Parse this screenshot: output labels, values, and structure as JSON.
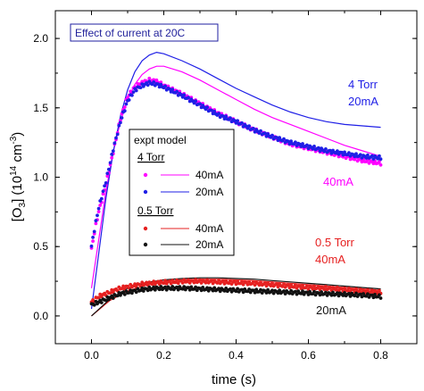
{
  "chart_data": {
    "type": "line",
    "title": "Effect of current at 20C",
    "xlabel": "time (s)",
    "ylabel": {
      "prefix": "[O",
      "sub": "3",
      "mid": "] (10",
      "sup": "14",
      "tail": " cm",
      "sup2": "-3",
      "close": ")"
    },
    "xlim": [
      -0.1,
      0.9
    ],
    "ylim": [
      -0.2,
      2.2
    ],
    "xticks": [
      "0.0",
      "0.2",
      "0.4",
      "0.6",
      "0.8"
    ],
    "yticks": [
      "0.0",
      "0.5",
      "1.0",
      "1.5",
      "2.0"
    ],
    "xtick_values": [
      0.0,
      0.2,
      0.4,
      0.6,
      0.8
    ],
    "ytick_values": [
      0.0,
      0.5,
      1.0,
      1.5,
      2.0
    ],
    "grid": false,
    "legend": {
      "position": "left-middle",
      "header": "expt model",
      "groups": [
        {
          "label": "4 Torr",
          "entries": [
            {
              "label": "40mA",
              "color": "#ff00ff"
            },
            {
              "label": "20mA",
              "color": "#1f1fe6"
            }
          ]
        },
        {
          "label": "0.5 Torr",
          "entries": [
            {
              "label": "40mA",
              "color": "#e62020"
            },
            {
              "label": "20mA",
              "color": "#111111"
            }
          ]
        }
      ]
    },
    "annotations": {
      "four_torr": "4 Torr",
      "four_20": "20mA",
      "four_40": "40mA",
      "half_torr": "0.5 Torr",
      "half_40": "40mA",
      "half_20": "20mA"
    },
    "series": [
      {
        "name": "4 Torr 40mA expt",
        "kind": "expt",
        "color": "#ff00ff",
        "x": [
          0.0,
          0.01,
          0.02,
          0.04,
          0.06,
          0.08,
          0.1,
          0.12,
          0.14,
          0.16,
          0.18,
          0.2,
          0.25,
          0.3,
          0.35,
          0.4,
          0.45,
          0.5,
          0.55,
          0.6,
          0.65,
          0.7,
          0.75,
          0.8
        ],
        "y": [
          0.48,
          0.63,
          0.75,
          0.95,
          1.18,
          1.42,
          1.58,
          1.65,
          1.68,
          1.7,
          1.69,
          1.66,
          1.6,
          1.53,
          1.46,
          1.4,
          1.34,
          1.29,
          1.24,
          1.21,
          1.18,
          1.15,
          1.12,
          1.1
        ]
      },
      {
        "name": "4 Torr 20mA expt",
        "kind": "expt",
        "color": "#1f1fe6",
        "x": [
          0.0,
          0.01,
          0.02,
          0.04,
          0.06,
          0.08,
          0.1,
          0.12,
          0.14,
          0.16,
          0.18,
          0.2,
          0.25,
          0.3,
          0.35,
          0.4,
          0.45,
          0.5,
          0.55,
          0.6,
          0.65,
          0.7,
          0.75,
          0.8
        ],
        "y": [
          0.5,
          0.65,
          0.78,
          0.97,
          1.2,
          1.4,
          1.55,
          1.63,
          1.66,
          1.68,
          1.67,
          1.65,
          1.59,
          1.52,
          1.45,
          1.4,
          1.34,
          1.29,
          1.25,
          1.22,
          1.19,
          1.17,
          1.15,
          1.14
        ]
      },
      {
        "name": "0.5 Torr 40mA expt",
        "kind": "expt",
        "color": "#e62020",
        "x": [
          0.0,
          0.02,
          0.04,
          0.06,
          0.08,
          0.1,
          0.14,
          0.18,
          0.22,
          0.26,
          0.3,
          0.35,
          0.4,
          0.45,
          0.5,
          0.55,
          0.6,
          0.65,
          0.7,
          0.75,
          0.8
        ],
        "y": [
          0.1,
          0.14,
          0.16,
          0.18,
          0.2,
          0.21,
          0.23,
          0.24,
          0.245,
          0.25,
          0.25,
          0.245,
          0.24,
          0.235,
          0.225,
          0.215,
          0.205,
          0.2,
          0.19,
          0.18,
          0.17
        ]
      },
      {
        "name": "0.5 Torr 20mA expt",
        "kind": "expt",
        "color": "#111111",
        "x": [
          0.0,
          0.02,
          0.04,
          0.06,
          0.08,
          0.1,
          0.14,
          0.18,
          0.22,
          0.26,
          0.3,
          0.35,
          0.4,
          0.45,
          0.5,
          0.55,
          0.6,
          0.65,
          0.7,
          0.75,
          0.8
        ],
        "y": [
          0.08,
          0.1,
          0.12,
          0.14,
          0.16,
          0.17,
          0.19,
          0.2,
          0.2,
          0.2,
          0.195,
          0.19,
          0.185,
          0.18,
          0.175,
          0.17,
          0.165,
          0.16,
          0.155,
          0.15,
          0.14
        ]
      },
      {
        "name": "4 Torr 40mA model",
        "kind": "model",
        "color": "#ff00ff",
        "x": [
          0.0,
          0.02,
          0.04,
          0.06,
          0.08,
          0.1,
          0.12,
          0.14,
          0.16,
          0.18,
          0.2,
          0.25,
          0.3,
          0.35,
          0.4,
          0.45,
          0.5,
          0.55,
          0.6,
          0.65,
          0.7,
          0.75,
          0.8
        ],
        "y": [
          0.2,
          0.55,
          0.9,
          1.18,
          1.4,
          1.56,
          1.67,
          1.74,
          1.78,
          1.8,
          1.8,
          1.76,
          1.7,
          1.63,
          1.56,
          1.49,
          1.43,
          1.38,
          1.33,
          1.28,
          1.23,
          1.19,
          1.15
        ]
      },
      {
        "name": "4 Torr 20mA model",
        "kind": "model",
        "color": "#1f1fe6",
        "x": [
          0.0,
          0.02,
          0.04,
          0.06,
          0.08,
          0.1,
          0.12,
          0.14,
          0.16,
          0.18,
          0.2,
          0.25,
          0.3,
          0.35,
          0.4,
          0.45,
          0.5,
          0.55,
          0.6,
          0.65,
          0.7,
          0.75,
          0.8
        ],
        "y": [
          0.05,
          0.45,
          0.85,
          1.18,
          1.44,
          1.63,
          1.76,
          1.84,
          1.88,
          1.9,
          1.89,
          1.84,
          1.78,
          1.71,
          1.64,
          1.58,
          1.52,
          1.47,
          1.43,
          1.4,
          1.38,
          1.37,
          1.36
        ]
      },
      {
        "name": "0.5 Torr 40mA model",
        "kind": "model",
        "color": "#e62020",
        "x": [
          0.0,
          0.05,
          0.1,
          0.15,
          0.2,
          0.25,
          0.3,
          0.35,
          0.4,
          0.45,
          0.5,
          0.55,
          0.6,
          0.65,
          0.7,
          0.75,
          0.8
        ],
        "y": [
          0.0,
          0.11,
          0.18,
          0.22,
          0.245,
          0.26,
          0.265,
          0.265,
          0.26,
          0.255,
          0.245,
          0.235,
          0.225,
          0.215,
          0.205,
          0.195,
          0.185
        ]
      },
      {
        "name": "0.5 Torr 20mA model",
        "kind": "model",
        "color": "#111111",
        "x": [
          0.0,
          0.05,
          0.1,
          0.15,
          0.2,
          0.25,
          0.3,
          0.35,
          0.4,
          0.45,
          0.5,
          0.55,
          0.6,
          0.65,
          0.7,
          0.75,
          0.8
        ],
        "y": [
          0.0,
          0.12,
          0.2,
          0.24,
          0.26,
          0.27,
          0.275,
          0.275,
          0.27,
          0.265,
          0.255,
          0.245,
          0.235,
          0.225,
          0.215,
          0.205,
          0.195
        ]
      }
    ]
  }
}
